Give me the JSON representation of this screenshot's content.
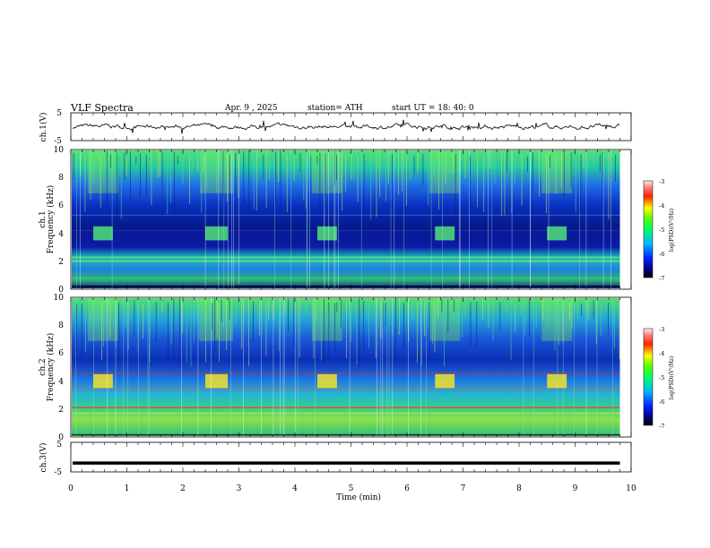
{
  "header": {
    "title": "VLF  Spectra",
    "date": "Apr. 9  , 2025",
    "station": "station= ATH",
    "start": "start  UT  =   18: 40: 0"
  },
  "chart_data": {
    "type": "heatmap",
    "xlabel": "Time  (min)",
    "xlim": [
      0,
      10
    ],
    "xticks": [
      "0",
      "1",
      "2",
      "3",
      "4",
      "5",
      "6",
      "7",
      "8",
      "9",
      "10"
    ],
    "grid": false,
    "panels": [
      {
        "id": "ch1-waveform",
        "ylabel": "ch.1(V)",
        "ylim": [
          -5,
          5
        ],
        "yticks": [
          "5",
          "-5"
        ],
        "series": {
          "kind": "line",
          "level": 0,
          "noise_amplitude": 0.6
        }
      },
      {
        "id": "ch1-spectrogram",
        "ylabel": [
          "ch.1",
          "Frequency  (kHz)"
        ],
        "ylim": [
          0,
          10
        ],
        "yticks": [
          "0",
          "2",
          "4",
          "6",
          "8",
          "10"
        ],
        "colorbar": {
          "label": "log(PSD)(V²/Hz)",
          "ticks": [
            "-3",
            "-4",
            "-5",
            "-6",
            "-7"
          ],
          "range": [
            -7,
            -3
          ]
        },
        "burst_windows_min": [
          [
            0.4,
            0.75
          ],
          [
            2.4,
            2.8
          ],
          [
            4.4,
            4.75
          ],
          [
            6.5,
            6.85
          ],
          [
            8.5,
            8.85
          ]
        ],
        "burst_band_khz": [
          3.5,
          4.5
        ]
      },
      {
        "id": "ch2-spectrogram",
        "ylabel": [
          "ch.2",
          "Frequency  (kHz)"
        ],
        "ylim": [
          0,
          10
        ],
        "yticks": [
          "0",
          "2",
          "4",
          "6",
          "8",
          "10"
        ],
        "colorbar": {
          "label": "log(PSD)(V²/Hz)",
          "ticks": [
            "-3",
            "-4",
            "-5",
            "-6",
            "-7"
          ],
          "range": [
            -7,
            -3
          ]
        },
        "burst_windows_min": [
          [
            0.4,
            0.75
          ],
          [
            2.4,
            2.8
          ],
          [
            4.4,
            4.75
          ],
          [
            6.5,
            6.85
          ],
          [
            8.5,
            8.85
          ]
        ],
        "burst_band_khz": [
          3.5,
          4.5
        ]
      },
      {
        "id": "ch3-waveform",
        "ylabel": "ch.3(V)",
        "ylim": [
          -5,
          5
        ],
        "yticks": [
          "5",
          "-5"
        ],
        "series": {
          "kind": "line",
          "level": -2,
          "noise_amplitude": 0
        }
      }
    ],
    "data_extent_min": [
      0,
      9.8
    ]
  }
}
